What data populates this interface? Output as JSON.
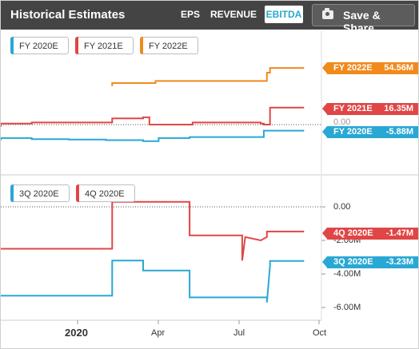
{
  "header": {
    "title": "Historical Estimates",
    "tabs": [
      {
        "label": "EPS",
        "active": false
      },
      {
        "label": "REVENUE",
        "active": false
      },
      {
        "label": "EBITDA",
        "active": true
      }
    ],
    "save_label": "Save & Share",
    "save_icon": "camera-icon"
  },
  "colors": {
    "header_bg": "#444444",
    "active_tab": "#2aa9c9",
    "fy2020": "#29a8d4",
    "fy2021": "#e04646",
    "fy2022": "#f08a1d"
  },
  "top_panel": {
    "legend": [
      "FY 2020E",
      "FY 2021E",
      "FY 2022E"
    ],
    "tags": [
      {
        "label": "FY 2022E",
        "value": "54.56M"
      },
      {
        "label": "FY 2021E",
        "value": "16.35M"
      },
      {
        "label": "FY 2020E",
        "value": "-5.88M"
      }
    ],
    "hidden_tick": "0.00"
  },
  "bottom_panel": {
    "legend": [
      "3Q 2020E",
      "4Q 2020E"
    ],
    "tags": [
      {
        "label": "4Q 2020E",
        "value": "-1.47M"
      },
      {
        "label": "3Q 2020E",
        "value": "-3.23M"
      }
    ],
    "yticks": [
      "0.00",
      "-2.00M",
      "-4.00M",
      "-6.00M"
    ]
  },
  "xaxis": {
    "ticks": [
      "2020",
      "Apr",
      "Jul",
      "Oct"
    ]
  },
  "chart_data": [
    {
      "type": "line",
      "series": [
        {
          "name": "FY 2022E",
          "x": [
            0.36,
            0.36,
            0.5,
            0.5,
            0.86,
            0.86,
            0.87,
            0.87,
            0.98
          ],
          "y": [
            37,
            40,
            40,
            42,
            42,
            50,
            50,
            54.56,
            54.56
          ]
        },
        {
          "name": "FY 2021E",
          "x": [
            0,
            0,
            0.1,
            0.1,
            0.36,
            0.36,
            0.46,
            0.46,
            0.48,
            0.48,
            0.62,
            0.62,
            0.84,
            0.84,
            0.85,
            0.85,
            0.87,
            0.87,
            0.98
          ],
          "y": [
            -2,
            1,
            1,
            2,
            2,
            6,
            6,
            7,
            7,
            0,
            0,
            2,
            2,
            1,
            1,
            0,
            0,
            16.35,
            16.35
          ]
        },
        {
          "name": "FY 2020E",
          "x": [
            0,
            0,
            0.1,
            0.1,
            0.22,
            0.22,
            0.34,
            0.34,
            0.46,
            0.46,
            0.51,
            0.51,
            0.61,
            0.61,
            0.85,
            0.85,
            0.98
          ],
          "y": [
            -15,
            -13,
            -13,
            -14,
            -14,
            -14.5,
            -14.5,
            -15,
            -15,
            -16,
            -16,
            -13,
            -13,
            -12,
            -12,
            -5.88,
            -5.88
          ]
        }
      ]
    },
    {
      "type": "line",
      "series": [
        {
          "name": "4Q 2020E",
          "x": [
            0,
            0.36,
            0.36,
            0.61,
            0.61,
            0.78,
            0.78,
            0.79,
            0.79,
            0.84,
            0.84,
            0.86,
            0.86,
            0.98
          ],
          "y": [
            -2.5,
            -2.5,
            0.3,
            0.3,
            -1.7,
            -1.7,
            -3.2,
            -1.8,
            -1.8,
            -2,
            -2,
            -1.8,
            -1.47,
            -1.47
          ]
        },
        {
          "name": "3Q 2020E",
          "x": [
            0,
            0.36,
            0.36,
            0.46,
            0.46,
            0.61,
            0.61,
            0.86,
            0.86,
            0.87,
            0.87,
            0.98
          ],
          "y": [
            -5.3,
            -5.3,
            -3.2,
            -3.2,
            -3.8,
            -3.8,
            -5.4,
            -5.4,
            -5.7,
            -3.5,
            -3.23,
            -3.23
          ]
        }
      ],
      "yticks": [
        0,
        -2,
        -4,
        -6
      ]
    }
  ]
}
